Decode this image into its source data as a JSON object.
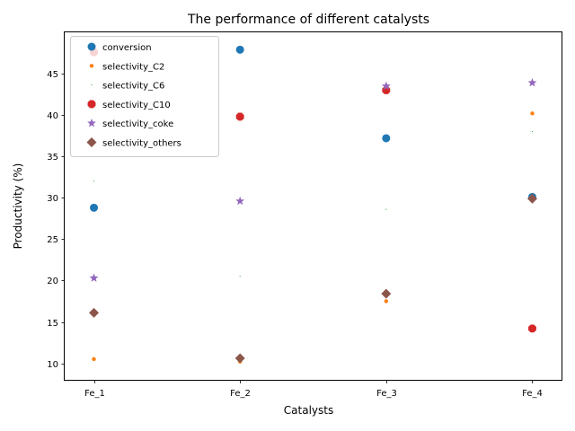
{
  "chart_data": {
    "type": "scatter",
    "title": "The performance of different catalysts",
    "xlabel": "Catalysts",
    "ylabel": "Productivity (%)",
    "categories": [
      "Fe_1",
      "Fe_2",
      "Fe_3",
      "Fe_4"
    ],
    "ylim": [
      8.0,
      50.0
    ],
    "yticks": [
      10,
      15,
      20,
      25,
      30,
      35,
      40,
      45
    ],
    "grid": false,
    "legend_position": "top-left",
    "series": [
      {
        "name": "conversion",
        "marker": "circle",
        "color": "#1f77b4",
        "values": [
          28.8,
          47.9,
          37.2,
          30.1
        ]
      },
      {
        "name": "selectivity_C2",
        "marker": "small-dot",
        "color": "#ff7f0e",
        "values": [
          10.5,
          10.2,
          17.5,
          40.2
        ]
      },
      {
        "name": "selectivity_C6",
        "marker": "pixel",
        "color": "#2ca02c",
        "values": [
          32.0,
          20.5,
          28.6,
          38.0
        ]
      },
      {
        "name": "selectivity_C10",
        "marker": "octagon",
        "color": "#d62728",
        "values": [
          47.6,
          39.8,
          43.0,
          14.2
        ]
      },
      {
        "name": "selectivity_coke",
        "marker": "star",
        "color": "#9467bd",
        "values": [
          20.3,
          29.6,
          43.5,
          43.9
        ]
      },
      {
        "name": "selectivity_others",
        "marker": "diamond",
        "color": "#8c564b",
        "values": [
          16.1,
          10.6,
          18.4,
          29.9
        ]
      }
    ]
  }
}
